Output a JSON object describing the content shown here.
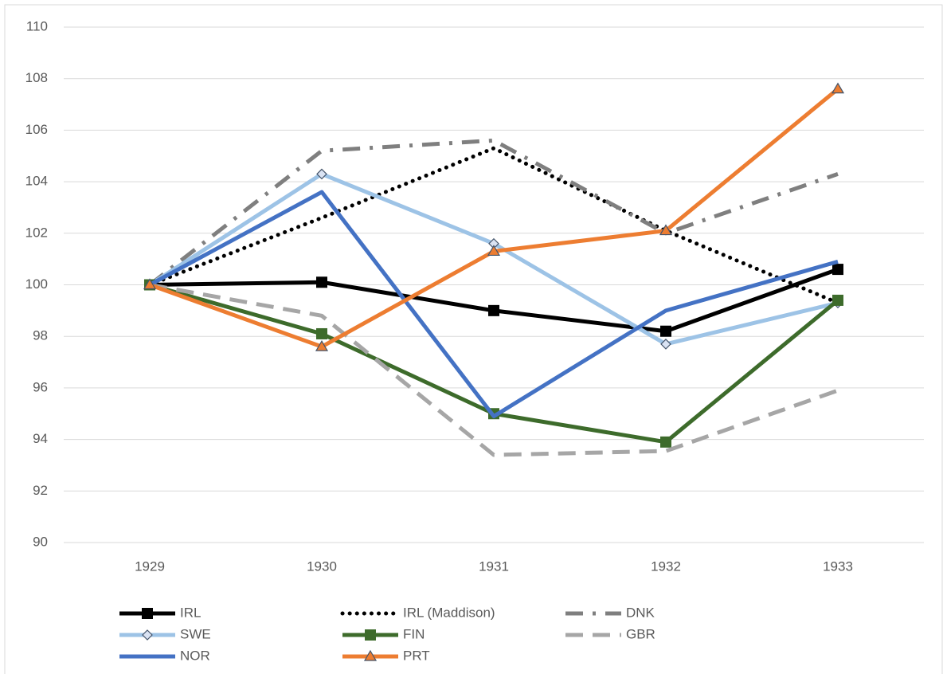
{
  "chart_data": {
    "type": "line",
    "categories": [
      "1929",
      "1930",
      "1931",
      "1932",
      "1933"
    ],
    "ylim": [
      90,
      110
    ],
    "yticks": [
      90,
      92,
      94,
      96,
      98,
      100,
      102,
      104,
      106,
      108,
      110
    ],
    "grid": true,
    "legend": "bottom",
    "series": [
      {
        "name": "IRL",
        "color": "#000000",
        "dash": "solid",
        "marker": "square",
        "values": [
          100,
          100.1,
          99.0,
          98.2,
          100.6
        ]
      },
      {
        "name": "IRL (Maddison)",
        "color": "#000000",
        "dash": "dotted",
        "marker": "none",
        "values": [
          100,
          102.6,
          105.3,
          102.1,
          99.3
        ]
      },
      {
        "name": "DNK",
        "color": "#7f7f7f",
        "dash": "dashdot",
        "marker": "none",
        "values": [
          100,
          105.2,
          105.6,
          102.0,
          104.3
        ]
      },
      {
        "name": "SWE",
        "color": "#9dc3e6",
        "dash": "solid",
        "marker": "diamond",
        "values": [
          100,
          104.3,
          101.6,
          97.7,
          99.3
        ]
      },
      {
        "name": "FIN",
        "color": "#3d6b2b",
        "dash": "solid",
        "marker": "square",
        "values": [
          100,
          98.1,
          95.0,
          93.9,
          99.4
        ]
      },
      {
        "name": "GBR",
        "color": "#a6a6a6",
        "dash": "dashed",
        "marker": "none",
        "values": [
          100,
          98.8,
          93.4,
          93.55,
          95.9
        ]
      },
      {
        "name": "NOR",
        "color": "#4472c4",
        "dash": "solid",
        "marker": "none",
        "values": [
          100,
          103.6,
          94.9,
          99.0,
          100.9
        ]
      },
      {
        "name": "PRT",
        "color": "#ed7d31",
        "dash": "solid",
        "marker": "triangle",
        "values": [
          100,
          97.6,
          101.3,
          102.1,
          107.6
        ]
      }
    ]
  }
}
